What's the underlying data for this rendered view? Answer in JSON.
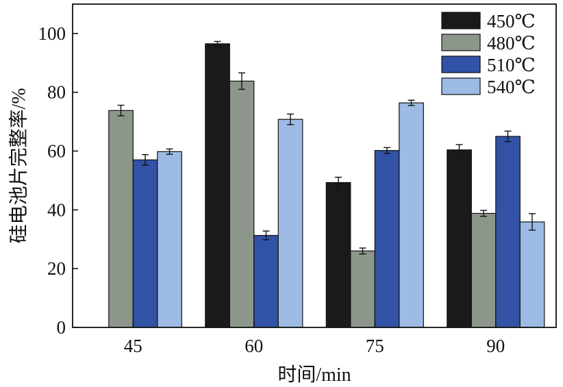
{
  "chart_data": {
    "type": "bar",
    "title": "",
    "xlabel": "时间/min",
    "ylabel": "硅电池片完整率/%",
    "categories": [
      "45",
      "60",
      "75",
      "90"
    ],
    "ylim": [
      0,
      110
    ],
    "yticks": [
      0,
      20,
      40,
      60,
      80,
      100
    ],
    "legend_position": "top-right",
    "grid": false,
    "series": [
      {
        "name": "450℃",
        "color": "#1a1a1a",
        "values": [
          0,
          96.5,
          49.3,
          60.4
        ],
        "errors": [
          0,
          0.8,
          1.8,
          1.8
        ]
      },
      {
        "name": "480℃",
        "color": "#8c968a",
        "values": [
          73.8,
          83.8,
          26.0,
          38.8
        ],
        "errors": [
          1.8,
          2.8,
          1.0,
          1.0
        ]
      },
      {
        "name": "510℃",
        "color": "#3252a6",
        "values": [
          57.0,
          31.3,
          60.2,
          65.0
        ],
        "errors": [
          1.8,
          1.5,
          1.0,
          1.8
        ]
      },
      {
        "name": "540℃",
        "color": "#9dbbe4",
        "values": [
          59.8,
          70.8,
          76.4,
          35.9
        ],
        "errors": [
          0.9,
          1.8,
          0.9,
          2.8
        ]
      }
    ]
  }
}
